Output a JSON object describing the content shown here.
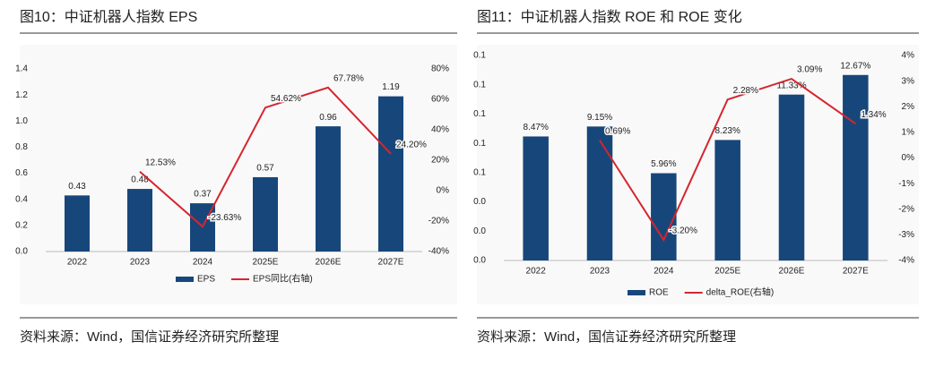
{
  "chart_data": [
    {
      "type": "bar",
      "title": "图10：中证机器人指数 EPS",
      "note": "资料来源：Wind，国信证券经济研究所整理",
      "categories": [
        "2022",
        "2023",
        "2024",
        "2025E",
        "2026E",
        "2027E"
      ],
      "series": [
        {
          "name": "EPS",
          "type": "bar",
          "color": "#17477a",
          "values": [
            0.43,
            0.48,
            0.37,
            0.57,
            0.96,
            1.19
          ]
        },
        {
          "name": "EPS同比(右轴)",
          "type": "line",
          "axis": "y2",
          "color": "#d6252f",
          "values": [
            null,
            12.53,
            -23.63,
            54.62,
            67.78,
            24.2
          ],
          "value_labels": [
            null,
            "12.53%",
            "-23.63%",
            "54.62%",
            "67.78%",
            "24.20%"
          ]
        }
      ],
      "ylim": [
        0,
        1.4
      ],
      "yticks": [
        {
          "value": 0,
          "label": "0.0"
        },
        0.2,
        0.4,
        0.6,
        0.8,
        {
          "value": 1,
          "label": "1.0"
        },
        1.2,
        1.4
      ],
      "y2lim": [
        -40,
        80
      ],
      "y2ticks": [
        {
          "value": -40,
          "label": "-40%"
        },
        {
          "value": -20,
          "label": "-20%"
        },
        {
          "value": 0,
          "label": "0%"
        },
        {
          "value": 20,
          "label": "20%"
        },
        {
          "value": 40,
          "label": "40%"
        },
        {
          "value": 60,
          "label": "60%"
        },
        {
          "value": 80,
          "label": "80%"
        }
      ],
      "legend": "bottom"
    },
    {
      "type": "bar",
      "title": "图11：中证机器人指数 ROE 和 ROE 变化",
      "note": "资料来源：Wind，国信证券经济研究所整理",
      "categories": [
        "2022",
        "2023",
        "2024",
        "2025E",
        "2026E",
        "2027E"
      ],
      "series": [
        {
          "name": "ROE",
          "type": "bar",
          "color": "#17477a",
          "values": [
            0.0847,
            0.0915,
            0.0596,
            0.0823,
            0.1133,
            0.1267
          ],
          "value_labels": [
            "8.47%",
            "9.15%",
            "5.96%",
            "8.23%",
            "11.33%",
            "12.67%"
          ]
        },
        {
          "name": "delta_ROE(右轴)",
          "type": "line",
          "axis": "y2",
          "color": "#d6252f",
          "values": [
            null,
            0.69,
            -3.2,
            2.28,
            3.09,
            1.34
          ],
          "value_labels": [
            null,
            "0.69%",
            "-3.20%",
            "2.28%",
            "3.09%",
            "1.34%"
          ]
        }
      ],
      "ylim": [
        0,
        0.14
      ],
      "yticks": [
        {
          "value": 0,
          "label": "0.0"
        },
        {
          "value": 0.02,
          "label": "0.0"
        },
        {
          "value": 0.04,
          "label": "0.0"
        },
        {
          "value": 0.06,
          "label": "0.1"
        },
        {
          "value": 0.08,
          "label": "0.1"
        },
        {
          "value": 0.1,
          "label": "0.1"
        },
        {
          "value": 0.12,
          "label": "0.1"
        },
        {
          "value": 0.14,
          "label": "0.1"
        }
      ],
      "y2lim": [
        -4,
        4
      ],
      "y2ticks": [
        {
          "value": -4,
          "label": "-4%"
        },
        {
          "value": -3,
          "label": "-3%"
        },
        {
          "value": -2,
          "label": "-2%"
        },
        {
          "value": -1,
          "label": "-1%"
        },
        {
          "value": 0,
          "label": "0%"
        },
        {
          "value": 1,
          "label": "1%"
        },
        {
          "value": 2,
          "label": "2%"
        },
        {
          "value": 3,
          "label": "3%"
        },
        {
          "value": 4,
          "label": "4%"
        }
      ],
      "legend": "bottom"
    }
  ]
}
